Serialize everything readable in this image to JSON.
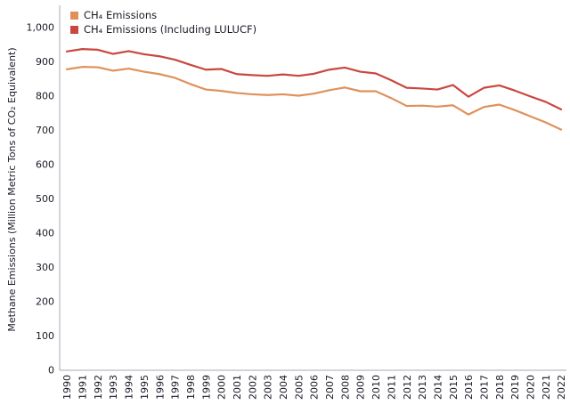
{
  "chart_data": {
    "type": "line",
    "title": "",
    "xlabel": "",
    "ylabel": "Methane Emissions (Million Metric Tons of CO₂ Equivalent)",
    "ylim": [
      0,
      1000
    ],
    "ytick_interval": 100,
    "ytick_labels": [
      "0",
      "100",
      "200",
      "300",
      "400",
      "500",
      "600",
      "700",
      "800",
      "900",
      "1,000"
    ],
    "grid": false,
    "legend_position": "top-left",
    "x": [
      1990,
      1991,
      1992,
      1993,
      1994,
      1995,
      1996,
      1997,
      1998,
      1999,
      2000,
      2001,
      2002,
      2003,
      2004,
      2005,
      2006,
      2007,
      2008,
      2009,
      2010,
      2011,
      2012,
      2013,
      2014,
      2015,
      2016,
      2017,
      2018,
      2019,
      2020,
      2021,
      2022
    ],
    "series": [
      {
        "name": "CH₄ Emissions",
        "color": "#e0915a",
        "values": [
          877,
          884,
          883,
          873,
          879,
          870,
          863,
          852,
          834,
          818,
          814,
          808,
          804,
          802,
          804,
          800,
          806,
          816,
          824,
          813,
          813,
          793,
          770,
          771,
          768,
          772,
          745,
          767,
          774,
          758,
          740,
          722,
          701
        ]
      },
      {
        "name": "CH₄ Emissions (Including LULUCF)",
        "color": "#c9473f",
        "values": [
          929,
          936,
          934,
          922,
          930,
          921,
          915,
          905,
          890,
          876,
          878,
          863,
          860,
          858,
          862,
          858,
          864,
          876,
          882,
          870,
          865,
          845,
          823,
          821,
          818,
          831,
          797,
          823,
          830,
          815,
          798,
          782,
          760
        ]
      }
    ]
  },
  "axis": {
    "line_color": "#a6a9b4",
    "text_color": "#1a1a26"
  }
}
